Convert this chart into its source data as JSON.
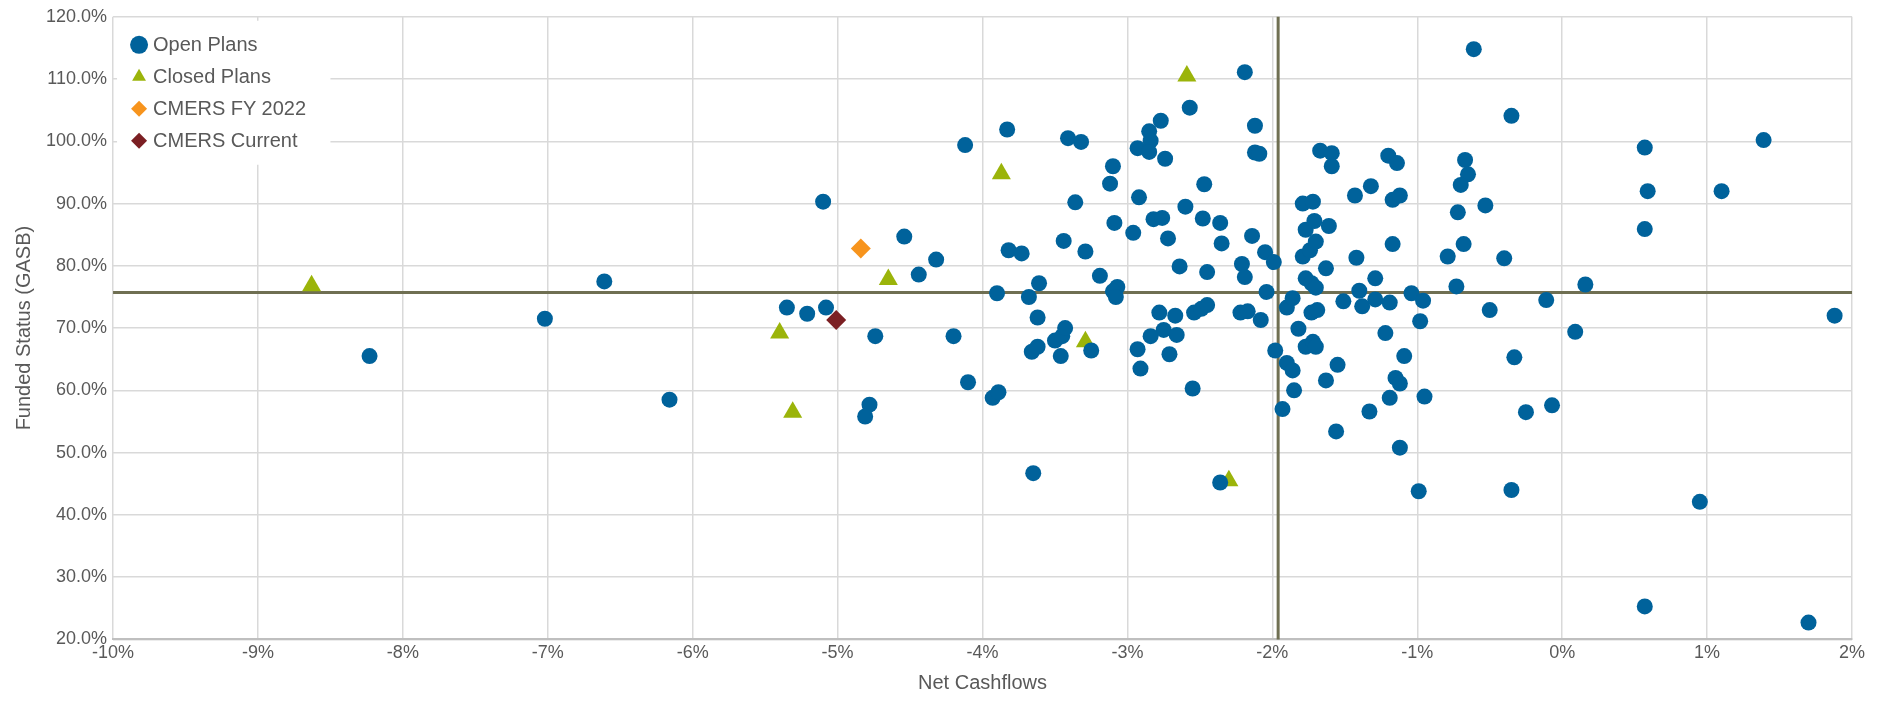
{
  "chart_data": {
    "type": "scatter",
    "xlabel": "Net Cashflows",
    "ylabel": "Funded Status (GASB)",
    "xlim": [
      -10,
      2
    ],
    "ylim": [
      20,
      120
    ],
    "xticks": [
      {
        "value": -10,
        "label": "-10%"
      },
      {
        "value": -9,
        "label": "-9%"
      },
      {
        "value": -8,
        "label": "-8%"
      },
      {
        "value": -7,
        "label": "-7%"
      },
      {
        "value": -6,
        "label": "-6%"
      },
      {
        "value": -5,
        "label": "-5%"
      },
      {
        "value": -4,
        "label": "-4%"
      },
      {
        "value": -3,
        "label": "-3%"
      },
      {
        "value": -2,
        "label": "-2%"
      },
      {
        "value": -1,
        "label": "-1%"
      },
      {
        "value": 0,
        "label": "0%"
      },
      {
        "value": 1,
        "label": "1%"
      },
      {
        "value": 2,
        "label": "2%"
      }
    ],
    "yticks": [
      {
        "value": 20,
        "label": "20.0%"
      },
      {
        "value": 30,
        "label": "30.0%"
      },
      {
        "value": 40,
        "label": "40.0%"
      },
      {
        "value": 50,
        "label": "50.0%"
      },
      {
        "value": 60,
        "label": "60.0%"
      },
      {
        "value": 70,
        "label": "70.0%"
      },
      {
        "value": 80,
        "label": "80.0%"
      },
      {
        "value": 90,
        "label": "90.0%"
      },
      {
        "value": 100,
        "label": "100.0%"
      },
      {
        "value": 110,
        "label": "110.0%"
      },
      {
        "value": 120,
        "label": "120.0%"
      }
    ],
    "grid": true,
    "legend": "top left",
    "ref_lines": [
      {
        "axis": "x",
        "value": -1.96,
        "color": "#6f6f52"
      },
      {
        "axis": "y",
        "value": 75.7,
        "color": "#6f6f52"
      }
    ],
    "series": [
      {
        "name": "Open Plans",
        "color": "#00629b",
        "marker": "circle",
        "x": [
          -8.23,
          -7.02,
          -6.61,
          -6.16,
          -5.1,
          -4.12,
          -4.54,
          -4.44,
          -4.32,
          -5.35,
          -5.21,
          -5.08,
          -4.74,
          -4.2,
          -4.78,
          -4.81,
          -4.1,
          -3.93,
          -3.89,
          -3.9,
          -3.83,
          -3.82,
          -3.73,
          -3.61,
          -3.68,
          -3.62,
          -3.66,
          -3.62,
          -3.5,
          -3.45,
          -3.43,
          -3.46,
          -3.25,
          -3.65,
          -3.41,
          -3.32,
          -3.36,
          -3.44,
          -3.29,
          -3.19,
          -3.1,
          -3.12,
          -3.09,
          -3.07,
          -3.1,
          -3.08,
          -2.96,
          -2.92,
          -2.93,
          -2.85,
          -2.84,
          -2.85,
          -2.77,
          -2.74,
          -2.82,
          -2.76,
          -2.72,
          -2.93,
          -2.91,
          -2.84,
          -2.75,
          -2.66,
          -2.78,
          -2.67,
          -2.71,
          -2.64,
          -2.6,
          -2.57,
          -2.47,
          -2.48,
          -2.36,
          -2.35,
          -2.45,
          -2.55,
          -2.54,
          -2.49,
          -2.45,
          -2.36,
          -2.19,
          -2.12,
          -2.12,
          -2.09,
          -2.14,
          -2.21,
          -2.19,
          -2.05,
          -1.99,
          -2.04,
          -2.22,
          -2.17,
          -2.08,
          -1.98,
          -1.9,
          -1.86,
          -1.85,
          -1.93,
          -1.9,
          -1.86,
          -1.79,
          -1.72,
          -1.77,
          -1.71,
          -1.79,
          -1.74,
          -1.7,
          -1.61,
          -1.63,
          -1.77,
          -1.73,
          -1.7,
          -1.73,
          -1.69,
          -1.82,
          -1.77,
          -1.72,
          -1.7,
          -1.63,
          -1.55,
          -1.56,
          -1.67,
          -1.59,
          -1.59,
          -1.43,
          -1.32,
          -1.42,
          -1.29,
          -1.4,
          -1.38,
          -1.51,
          -1.29,
          -1.19,
          -1.22,
          -1.09,
          -1.15,
          -1.12,
          -1.19,
          -1.33,
          -1.12,
          -1.2,
          -1.14,
          -1.17,
          -1.12,
          -1.17,
          -1.04,
          -0.96,
          -0.98,
          -0.95,
          -0.99,
          -0.67,
          -0.65,
          -0.7,
          -0.72,
          -0.53,
          -0.68,
          -0.79,
          -0.73,
          -0.5,
          -0.4,
          -0.61,
          -0.35,
          -0.33,
          -0.25,
          -0.35,
          -0.11,
          -0.07,
          0.09,
          0.16,
          0.57,
          0.59,
          0.57,
          1.1,
          1.39,
          1.88,
          0.95,
          0.57,
          1.7
        ],
        "values": [
          65.5,
          71.5,
          77.5,
          58.5,
          90.3,
          99.4,
          84.7,
          78.6,
          81.0,
          73.3,
          72.3,
          73.3,
          68.7,
          68.7,
          57.7,
          55.8,
          61.3,
          58.8,
          59.7,
          75.6,
          101.9,
          82.5,
          82.0,
          77.2,
          75.0,
          71.7,
          66.2,
          67.0,
          68.0,
          68.7,
          70.0,
          65.5,
          66.4,
          46.7,
          100.5,
          99.9,
          90.2,
          84.0,
          82.3,
          78.4,
          96.0,
          93.2,
          86.9,
          76.6,
          75.9,
          75.0,
          85.3,
          91.0,
          98.9,
          101.6,
          100.1,
          98.3,
          103.3,
          97.2,
          87.5,
          87.7,
          84.4,
          66.6,
          63.5,
          68.7,
          69.7,
          68.9,
          72.5,
          72.0,
          65.8,
          79.9,
          89.5,
          105.4,
          93.1,
          87.6,
          86.9,
          83.6,
          79.0,
          60.3,
          72.5,
          73.1,
          73.7,
          45.2,
          111.1,
          102.5,
          98.2,
          98.0,
          84.8,
          80.3,
          78.2,
          82.2,
          80.6,
          75.8,
          72.5,
          72.7,
          71.3,
          66.4,
          64.4,
          63.2,
          60.0,
          57.0,
          73.3,
          74.8,
          90.0,
          90.3,
          85.8,
          87.2,
          81.5,
          82.5,
          83.9,
          86.4,
          79.6,
          78.0,
          77.2,
          76.5,
          72.5,
          72.9,
          69.9,
          67.0,
          67.8,
          67.0,
          61.6,
          64.1,
          53.4,
          98.5,
          98.1,
          96.0,
          91.3,
          92.8,
          81.3,
          78.0,
          76.0,
          73.5,
          74.3,
          74.6,
          74.1,
          69.2,
          65.5,
          62.0,
          61.1,
          58.8,
          56.6,
          50.8,
          97.7,
          96.5,
          90.6,
          91.3,
          83.5,
          75.6,
          74.4,
          71.1,
          59.0,
          43.8,
          97.0,
          94.7,
          93.0,
          88.6,
          89.7,
          83.5,
          81.5,
          76.7,
          72.9,
          81.2,
          114.8,
          104.1,
          65.3,
          56.5,
          44.0,
          74.5,
          57.6,
          69.4,
          77.0,
          99.0,
          92.0,
          85.9,
          92.0,
          100.2,
          72.0,
          42.1,
          25.3,
          22.7
        ]
      },
      {
        "name": "Closed Plans",
        "color": "#9bb40a",
        "marker": "triangle",
        "x": [
          -8.63,
          -5.4,
          -5.31,
          -4.65,
          -3.87,
          -3.29,
          -2.59,
          -2.3
        ],
        "values": [
          76.8,
          69.2,
          56.5,
          77.8,
          94.8,
          67.8,
          110.5,
          45.5
        ]
      },
      {
        "name": "CMERS FY 2022",
        "color": "#f7941d",
        "marker": "diamond",
        "x": [
          -4.84
        ],
        "values": [
          82.8
        ]
      },
      {
        "name": "CMERS Current",
        "color": "#7b1f23",
        "marker": "diamond",
        "x": [
          -5.01
        ],
        "values": [
          71.3
        ]
      }
    ]
  }
}
